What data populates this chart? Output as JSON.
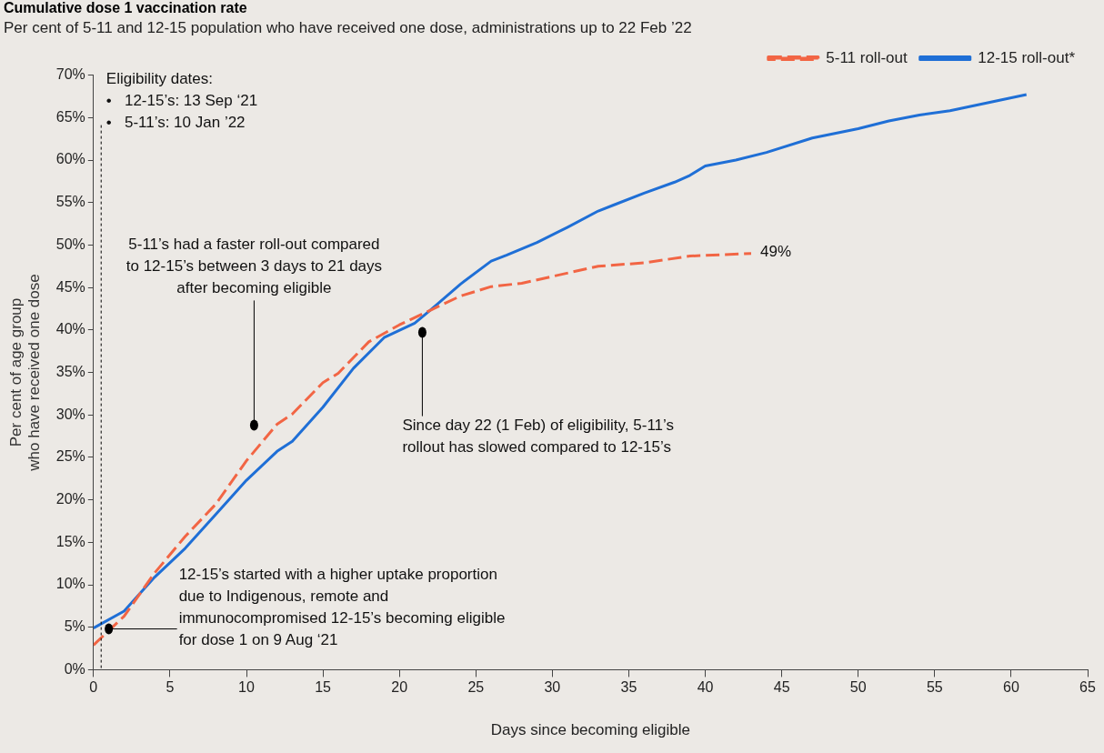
{
  "chart_data": {
    "type": "line",
    "title": "Cumulative dose 1 vaccination rate",
    "subtitle": "Per cent of 5-11 and 12-15 population who have received one dose, administrations up to 22 Feb ’22",
    "xlabel": "Days since becoming eligible",
    "ylabel": "Per cent of age group\nwho have received one dose",
    "series": [
      {
        "name": "5-11 roll-out",
        "color": "#f26544",
        "line_style": "dashed",
        "x": [
          0,
          2,
          4,
          6,
          8,
          10,
          12,
          13,
          15,
          16,
          18,
          20,
          22,
          24,
          26,
          28,
          30,
          33,
          36,
          39,
          43
        ],
        "values": [
          2.9,
          6.3,
          11.4,
          15.7,
          19.5,
          24.6,
          28.9,
          30.1,
          33.8,
          34.9,
          38.6,
          40.6,
          42.3,
          44,
          45.1,
          45.5,
          46.3,
          47.5,
          47.9,
          48.7,
          49
        ]
      },
      {
        "name": "12-15 roll-out*",
        "color": "#1f6fd6",
        "line_style": "solid",
        "x": [
          0,
          2,
          4,
          6,
          8,
          10,
          12,
          13,
          15,
          17,
          19,
          21,
          22,
          24,
          26,
          27,
          29,
          31,
          33,
          34,
          36,
          38,
          39,
          40,
          42,
          44,
          47,
          50,
          52,
          54,
          56,
          61
        ],
        "values": [
          4.9,
          6.9,
          10.9,
          14.3,
          18.3,
          22.3,
          25.7,
          26.9,
          30.9,
          35.5,
          39.1,
          40.8,
          42.3,
          45.4,
          48.1,
          48.8,
          50.3,
          52.1,
          54,
          54.7,
          56.1,
          57.4,
          58.2,
          59.3,
          60,
          60.9,
          62.6,
          63.7,
          64.6,
          65.3,
          65.8,
          67.7
        ]
      }
    ],
    "xlim": [
      0,
      65
    ],
    "xticks": [
      0,
      5,
      10,
      15,
      20,
      25,
      30,
      35,
      40,
      45,
      50,
      55,
      60,
      65
    ],
    "ylim": [
      0,
      70
    ],
    "yticks": [
      {
        "value": 0,
        "label": "0%"
      },
      {
        "value": 5,
        "label": "5%"
      },
      {
        "value": 10,
        "label": "10%"
      },
      {
        "value": 15,
        "label": "15%"
      },
      {
        "value": 20,
        "label": "20%"
      },
      {
        "value": 25,
        "label": "25%"
      },
      {
        "value": 30,
        "label": "30%"
      },
      {
        "value": 35,
        "label": "35%"
      },
      {
        "value": 40,
        "label": "40%"
      },
      {
        "value": 45,
        "label": "45%"
      },
      {
        "value": 50,
        "label": "50%"
      },
      {
        "value": 55,
        "label": "55%"
      },
      {
        "value": 60,
        "label": "60%"
      },
      {
        "value": 65,
        "label": "65%"
      },
      {
        "value": 70,
        "label": "70%"
      }
    ],
    "grid": false,
    "legend": "top right",
    "marker": "none",
    "ref_lines": [
      {
        "axis": "x",
        "value": 0.5,
        "label": null,
        "color": "#000000",
        "line_style": "dotted"
      }
    ],
    "annotations": [
      "Eligibility dates:\n•   12-15’s: 13 Sep ‘21\n•   5-11’s: 10 Jan ’22",
      {
        "text": "12-15’s started with a higher uptake proportion\ndue to Indigenous, remote and\nimmunocompromised 12-15’s becoming eligible\nfor dose 1 on 9 Aug ‘21",
        "x": 1,
        "y": 4.8
      },
      {
        "text": "5-11’s had a faster roll-out compared\nto 12-15’s between 3 days to 21 days\nafter becoming eligible",
        "x": 10.5,
        "y": 28.8
      },
      {
        "text": "Since day 22 (1 Feb) of eligibility, 5-11’s\nrollout has slowed compared to 12-15’s",
        "x": 21.5,
        "y": 39.7
      },
      {
        "text": "49%",
        "x": 43,
        "y": 49
      }
    ]
  }
}
